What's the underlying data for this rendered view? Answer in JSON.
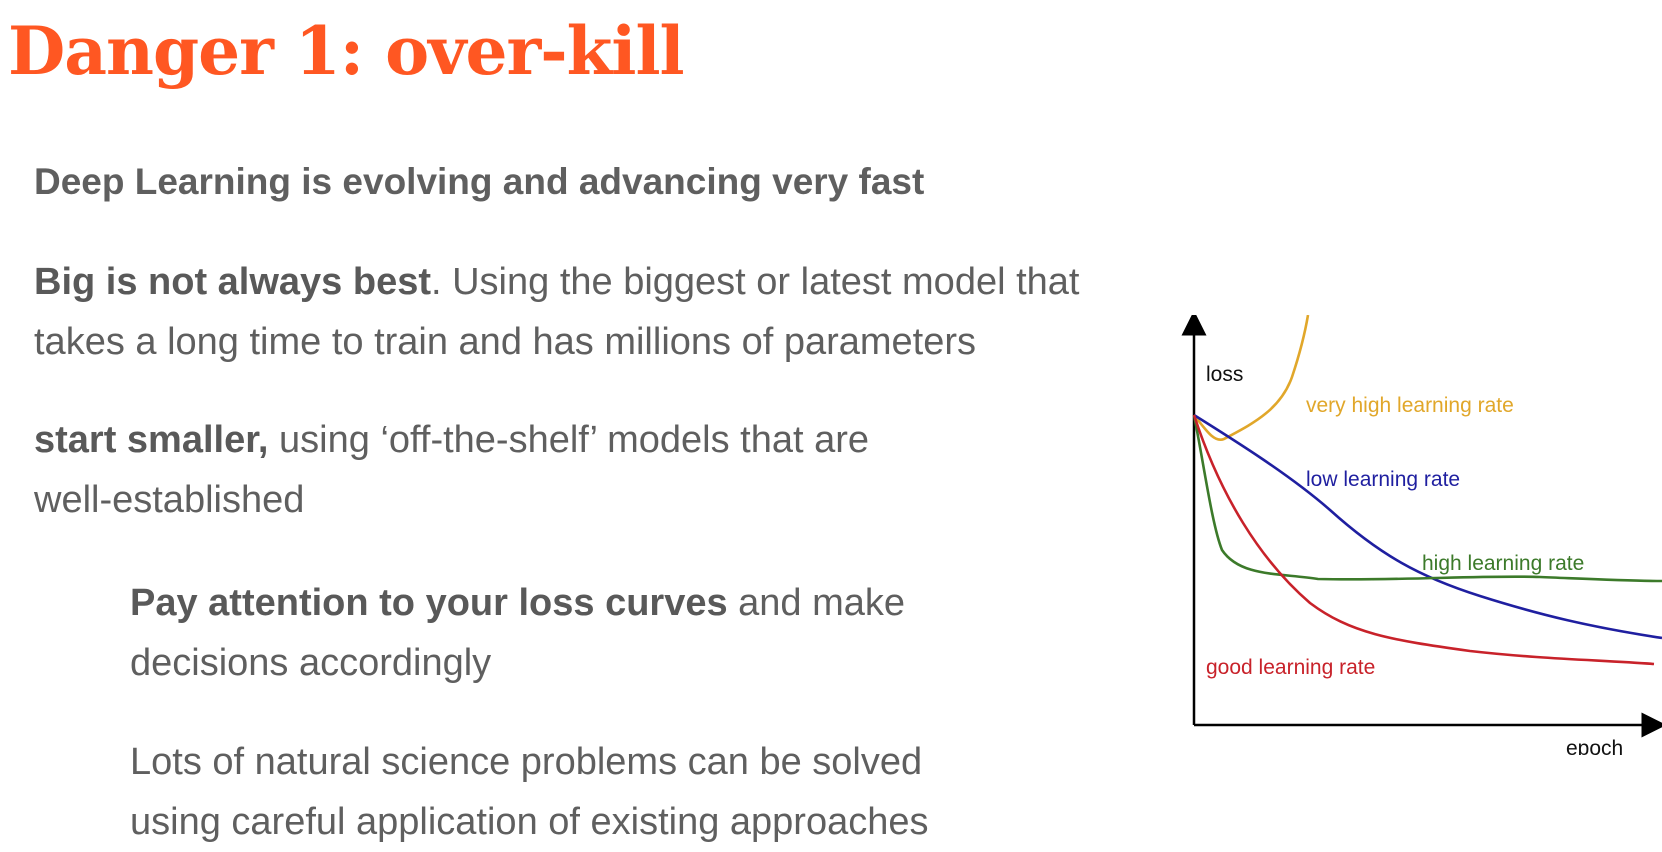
{
  "slide": {
    "title": "Danger 1: over-kill",
    "point_1": "Deep Learning is evolving and advancing very fast",
    "point_2": {
      "bold": "Big is not always best",
      "line1_rest": ". Using the biggest or latest model that",
      "line2": "takes a long time to train and has millions of parameters"
    },
    "point_3": {
      "bold": "start smaller,",
      "line1_rest": " using ‘off-the-shelf’ models that are",
      "line2": "well-established"
    },
    "point_4": {
      "bold": "Pay attention to your loss curves",
      "line1_rest": " and make",
      "line2": "decisions accordingly"
    },
    "point_5": {
      "line1": "Lots of natural science problems can be solved",
      "line2": "using careful application of existing approaches"
    }
  },
  "colors": {
    "title": "#ff5722",
    "very_high": "#e1a72a",
    "low": "#1f1fa0",
    "high": "#3c7a2a",
    "good": "#c8222a",
    "axis": "#000000"
  },
  "chart_data": {
    "type": "line",
    "xlabel": "epoch",
    "ylabel": "loss",
    "series": [
      {
        "name": "very high learning rate",
        "color_key": "very_high"
      },
      {
        "name": "low learning rate",
        "color_key": "low"
      },
      {
        "name": "high learning rate",
        "color_key": "high"
      },
      {
        "name": "good learning rate",
        "color_key": "good"
      }
    ]
  }
}
